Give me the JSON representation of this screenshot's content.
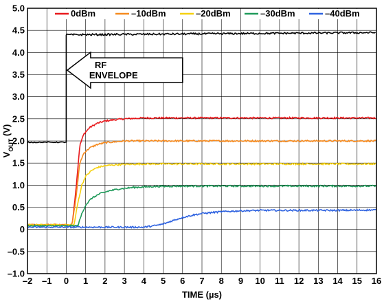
{
  "chart_data": {
    "type": "line",
    "xlabel": "TIME (µs)",
    "ylabel_main": "V",
    "ylabel_sub": "OUT",
    "ylabel_suffix": " (V)",
    "xlim": [
      -2,
      16
    ],
    "ylim": [
      -1.0,
      5.0
    ],
    "x_ticks": [
      -2,
      -1,
      0,
      1,
      2,
      3,
      4,
      5,
      6,
      7,
      8,
      9,
      10,
      11,
      12,
      13,
      14,
      15,
      16
    ],
    "x_tick_labels": [
      "–2",
      "–1",
      "0",
      "1",
      "2",
      "3",
      "4",
      "5",
      "6",
      "7",
      "8",
      "9",
      "10",
      "11",
      "12",
      "13",
      "14",
      "15",
      "16"
    ],
    "y_ticks": [
      5.0,
      4.5,
      4.0,
      3.5,
      3.0,
      2.5,
      2.0,
      1.5,
      1.0,
      0.5,
      0,
      -0.5,
      -1.0
    ],
    "y_tick_labels": [
      "5.0",
      "4.5",
      "4.0",
      "3.5",
      "3.0",
      "2.5",
      "2.0",
      "1.5",
      "1.0",
      "0.5",
      "0",
      "–0.5",
      "–1.0"
    ],
    "grid": true,
    "legend_position": "top",
    "series": [
      {
        "name": "0dBm",
        "color": "#e8191c",
        "x": [
          -2,
          0.3,
          0.5,
          0.7,
          0.9,
          1.2,
          1.6,
          2.0,
          2.5,
          3,
          4,
          6,
          8,
          10,
          12,
          14,
          16
        ],
        "y": [
          0.1,
          0.1,
          0.9,
          1.9,
          2.15,
          2.3,
          2.4,
          2.45,
          2.48,
          2.5,
          2.52,
          2.52,
          2.52,
          2.52,
          2.52,
          2.52,
          2.52
        ]
      },
      {
        "name": "–10dBm",
        "color": "#f58a1f",
        "x": [
          -2,
          0.3,
          0.5,
          0.7,
          0.9,
          1.2,
          1.6,
          2.0,
          2.5,
          3,
          4,
          6,
          8,
          10,
          12,
          14,
          16
        ],
        "y": [
          0.1,
          0.1,
          0.7,
          1.5,
          1.72,
          1.84,
          1.92,
          1.96,
          1.98,
          2.0,
          2.0,
          2.0,
          2.0,
          2.0,
          2.0,
          2.0,
          2.0
        ]
      },
      {
        "name": "–20dBm",
        "color": "#f5d010",
        "x": [
          -2,
          0.4,
          0.6,
          0.8,
          1.0,
          1.3,
          1.6,
          2.0,
          2.5,
          3,
          4,
          6,
          8,
          10,
          12,
          14,
          16
        ],
        "y": [
          0.1,
          0.1,
          0.6,
          1.0,
          1.2,
          1.33,
          1.4,
          1.44,
          1.46,
          1.47,
          1.48,
          1.48,
          1.48,
          1.48,
          1.48,
          1.48,
          1.48
        ]
      },
      {
        "name": "–30dBm",
        "color": "#1f9a5a",
        "x": [
          -2,
          0.6,
          0.8,
          1.0,
          1.3,
          1.7,
          2.2,
          2.8,
          3.5,
          4.5,
          6,
          8,
          10,
          12,
          14,
          16
        ],
        "y": [
          0.08,
          0.08,
          0.35,
          0.55,
          0.7,
          0.8,
          0.87,
          0.92,
          0.95,
          0.97,
          0.98,
          0.98,
          0.98,
          0.98,
          0.98,
          0.98
        ]
      },
      {
        "name": "–40dBm",
        "color": "#2f63e0",
        "x": [
          -2,
          4,
          4.5,
          5,
          5.5,
          6,
          6.5,
          7,
          8,
          9,
          10,
          12,
          14,
          16
        ],
        "y": [
          0.05,
          0.05,
          0.08,
          0.12,
          0.2,
          0.27,
          0.32,
          0.36,
          0.4,
          0.42,
          0.43,
          0.43,
          0.43,
          0.44
        ]
      },
      {
        "name": "RF ENVELOPE",
        "color": "#000000",
        "in_legend": false,
        "x": [
          -2,
          0,
          0,
          16
        ],
        "y": [
          1.97,
          1.97,
          4.4,
          4.45
        ]
      }
    ],
    "annotation": {
      "line1": "RF",
      "line2": "ENVELOPE",
      "arrow_tip_x": 0.05,
      "arrow_y": 3.6
    }
  }
}
